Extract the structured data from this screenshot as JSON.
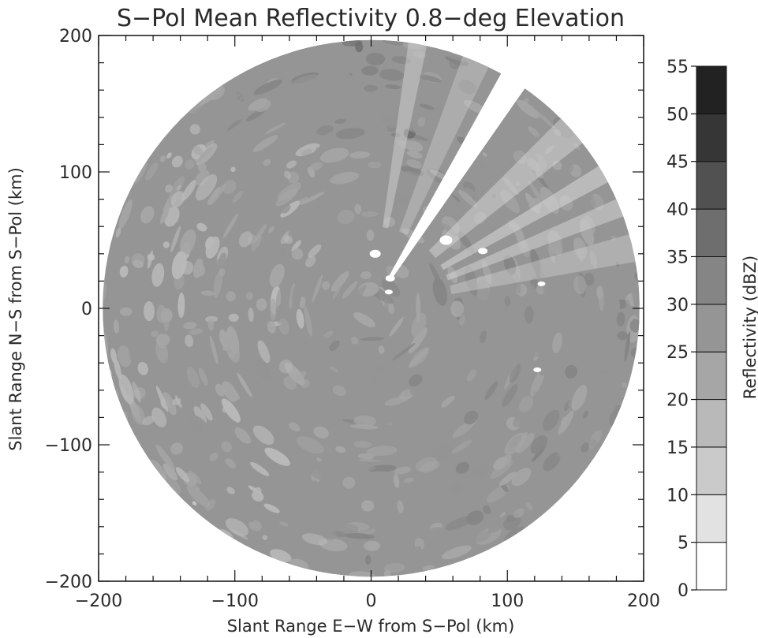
{
  "chart_data": {
    "type": "heatmap",
    "title": "S−Pol Mean Reflectivity 0.8−deg Elevation",
    "xlabel": "Slant Range E−W from S−Pol (km)",
    "ylabel": "Slant Range N−S from S−Pol (km)",
    "xlim": [
      -200,
      200
    ],
    "ylim": [
      -200,
      200
    ],
    "x_ticks": [
      -200,
      -100,
      0,
      100,
      200
    ],
    "x_tick_labels": [
      "−200",
      "−100",
      "0",
      "100",
      "200"
    ],
    "y_ticks": [
      -200,
      -100,
      0,
      100,
      200
    ],
    "y_tick_labels": [
      "−200",
      "−100",
      "0",
      "100",
      "200"
    ],
    "radar_range_km": 197,
    "blocked_sector_azimuth_deg": [
      29,
      35
    ],
    "colorbar": {
      "label": "Reflectivity (dBZ)",
      "levels": [
        0,
        5,
        10,
        15,
        20,
        25,
        30,
        35,
        40,
        45,
        50,
        55
      ],
      "level_labels": [
        "0",
        "5",
        "10",
        "15",
        "20",
        "25",
        "30",
        "35",
        "40",
        "45",
        "50",
        "55"
      ],
      "colors": [
        "#ffffff",
        "#e2e2e2",
        "#cacaca",
        "#b9b9b9",
        "#a6a6a6",
        "#959595",
        "#858585",
        "#6e6e6e",
        "#515151",
        "#363636",
        "#222222"
      ]
    }
  }
}
